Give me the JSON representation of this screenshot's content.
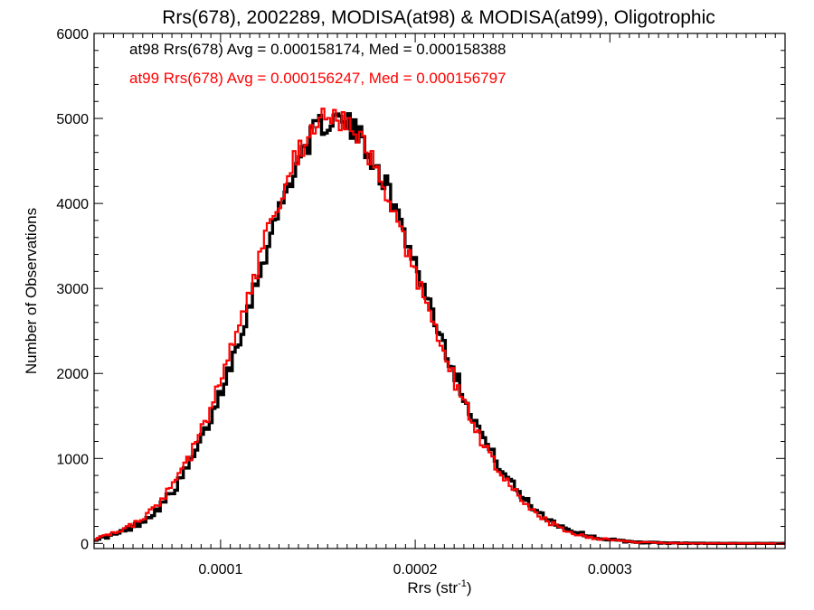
{
  "chart_data": {
    "type": "line",
    "title": "Rrs(678), 2002289, MODISA(at98) & MODISA(at99), Oligotrophic",
    "xlabel_base": "Rrs (str",
    "xlabel_sup": "-1",
    "xlabel_close": ")",
    "ylabel": "Number of Observations",
    "xlim": [
      3.5e-05,
      0.00039
    ],
    "ylim": [
      -60,
      6000
    ],
    "xticks": [
      {
        "value": 0.0001,
        "label": "0.0001"
      },
      {
        "value": 0.0002,
        "label": "0.0002"
      },
      {
        "value": 0.0003,
        "label": "0.0003"
      }
    ],
    "yticks": [
      {
        "value": 0,
        "label": "0"
      },
      {
        "value": 1000,
        "label": "1000"
      },
      {
        "value": 2000,
        "label": "2000"
      },
      {
        "value": 3000,
        "label": "3000"
      },
      {
        "value": 4000,
        "label": "4000"
      },
      {
        "value": 5000,
        "label": "5000"
      },
      {
        "value": 6000,
        "label": "6000"
      }
    ],
    "grid": false,
    "legend_position": "top-left",
    "series": [
      {
        "name": "at98 Rrs(678) Avg = 0.000158174, Med = 0.000158388",
        "color": "#000000",
        "mean": 0.000158174,
        "sd_left": 4.05e-05,
        "sd_right": 4.62e-05,
        "peak": 4980
      },
      {
        "name": "at99 Rrs(678) Avg = 0.000156247, Med = 0.000156797",
        "color": "#ff0000",
        "mean": 0.000156247,
        "sd_left": 4.05e-05,
        "sd_right": 4.62e-05,
        "peak": 4990
      }
    ]
  }
}
